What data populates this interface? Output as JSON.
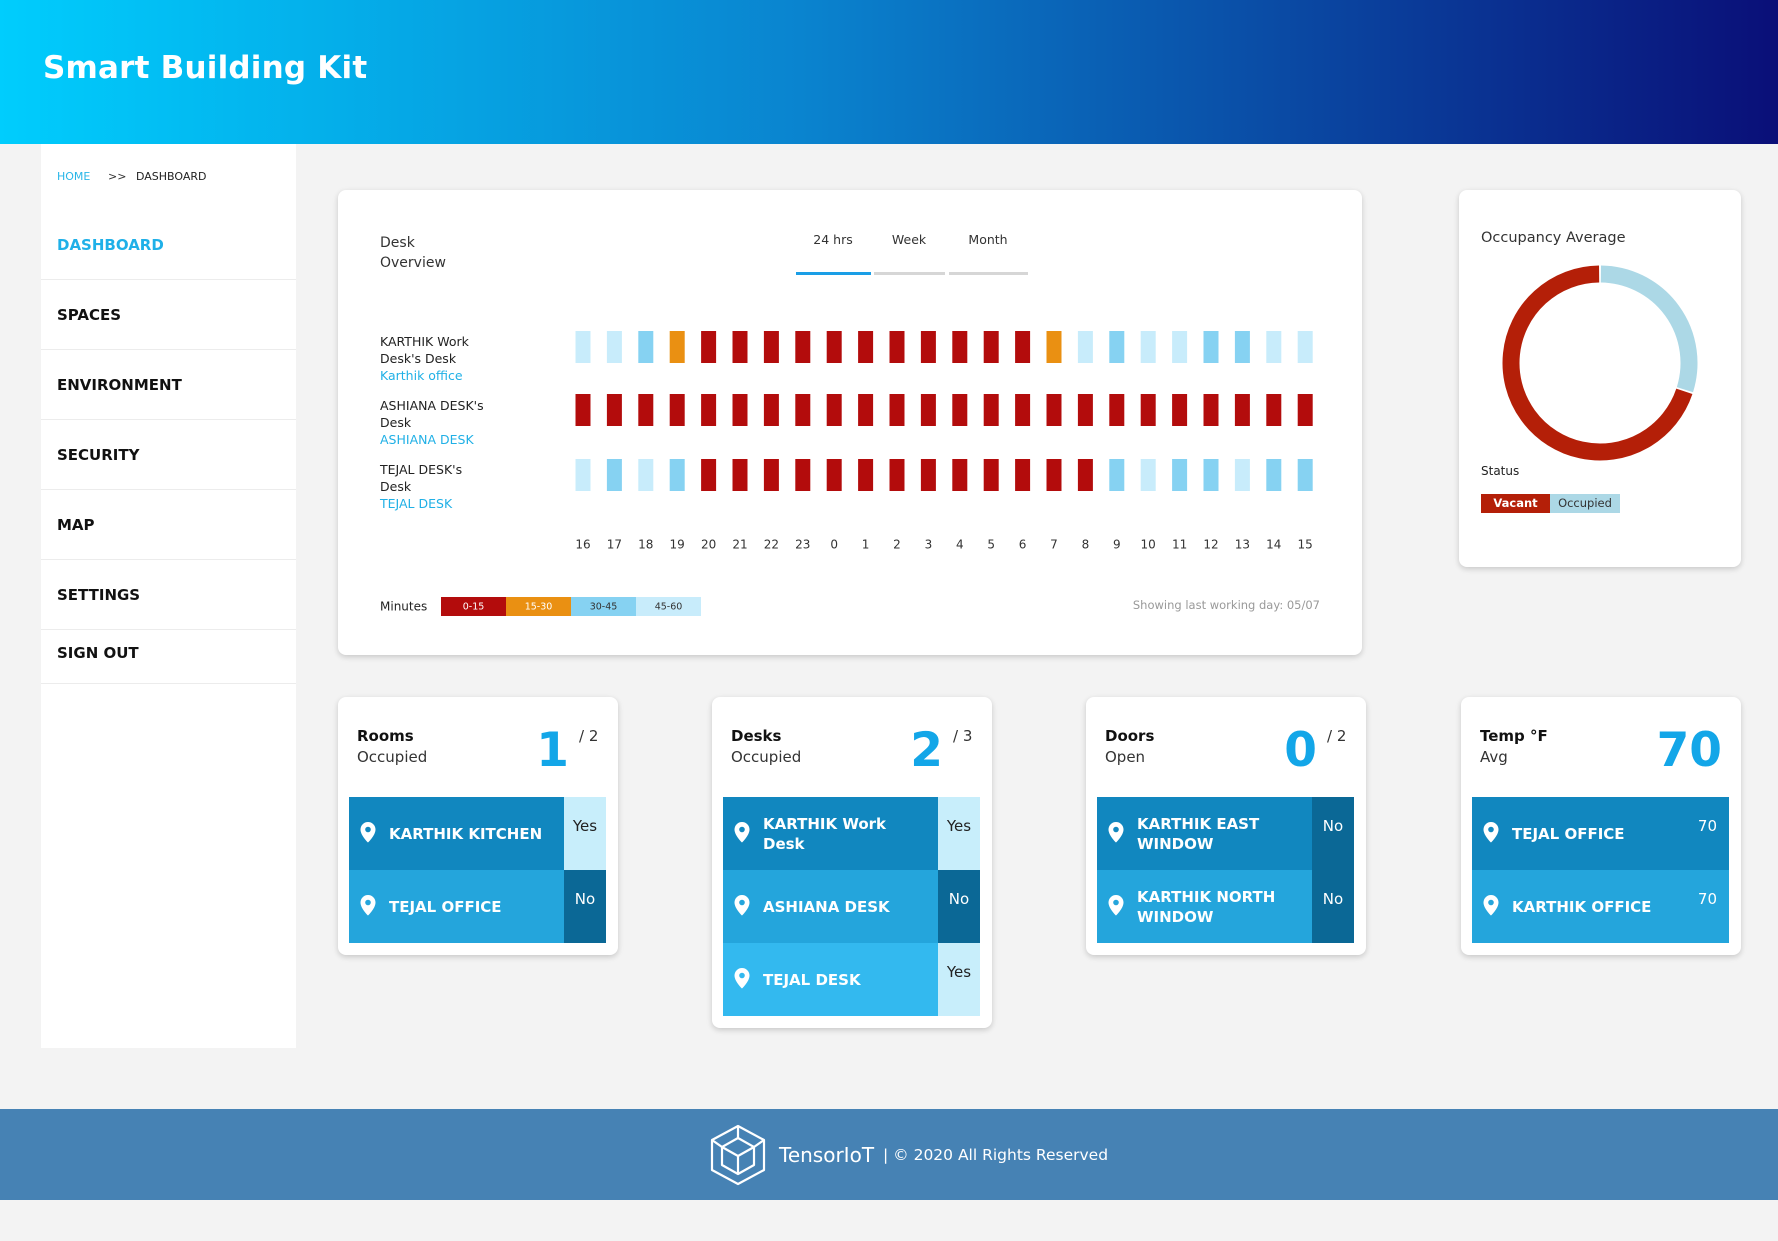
{
  "header": {
    "title": "Smart Building Kit"
  },
  "breadcrumb": {
    "home": "HOME",
    "separator": ">>",
    "current": "DASHBOARD"
  },
  "nav": {
    "items": [
      "DASHBOARD",
      "SPACES",
      "ENVIRONMENT",
      "SECURITY",
      "MAP",
      "SETTINGS",
      "SIGN OUT"
    ],
    "active": 0
  },
  "desk_overview": {
    "title": "Desk Overview",
    "tabs": [
      "24 hrs",
      "Week",
      "Month"
    ],
    "active_tab": 0,
    "rows": [
      {
        "name": "KARTHIK Work Desk's Desk",
        "location": "Karthik office",
        "cells": [
          3,
          3,
          2,
          1,
          0,
          0,
          0,
          0,
          0,
          0,
          0,
          0,
          0,
          0,
          0,
          1,
          3,
          2,
          3,
          3,
          2,
          2,
          3,
          3
        ]
      },
      {
        "name": "ASHIANA DESK's Desk",
        "location": "ASHIANA DESK",
        "cells": [
          0,
          0,
          0,
          0,
          0,
          0,
          0,
          0,
          0,
          0,
          0,
          0,
          0,
          0,
          0,
          0,
          0,
          0,
          0,
          0,
          0,
          0,
          0,
          0
        ]
      },
      {
        "name": "TEJAL DESK's Desk",
        "location": "TEJAL DESK",
        "cells": [
          3,
          2,
          3,
          2,
          0,
          0,
          0,
          0,
          0,
          0,
          0,
          0,
          0,
          0,
          0,
          0,
          0,
          2,
          3,
          2,
          2,
          3,
          2,
          2
        ]
      }
    ],
    "hours": [
      16,
      17,
      18,
      19,
      20,
      21,
      22,
      23,
      0,
      1,
      2,
      3,
      4,
      5,
      6,
      7,
      8,
      9,
      10,
      11,
      12,
      13,
      14,
      15
    ],
    "legend": {
      "title": "Minutes",
      "bins": [
        {
          "label": "0-15",
          "color": "#b30c0c"
        },
        {
          "label": "15-30",
          "color": "#ea9012"
        },
        {
          "label": "30-45",
          "color": "#86d2f2"
        },
        {
          "label": "45-60",
          "color": "#c8ecfb"
        }
      ]
    },
    "note": "Showing last working day: 05/07"
  },
  "occupancy": {
    "title": "Occupancy Average",
    "status_label": "Status",
    "segments": [
      {
        "name": "Vacant",
        "value": 70,
        "color": "#b41f08"
      },
      {
        "name": "Occupied",
        "value": 30,
        "color": "#acd8e6"
      }
    ]
  },
  "cards": [
    {
      "title": "Rooms",
      "subtitle": "Occupied",
      "value": 1,
      "total": "/ 2",
      "items": [
        {
          "label": "KARTHIK KITCHEN",
          "status": "Yes"
        },
        {
          "label": "TEJAL OFFICE",
          "status": "No"
        }
      ]
    },
    {
      "title": "Desks",
      "subtitle": "Occupied",
      "value": 2,
      "total": "/ 3",
      "items": [
        {
          "label": "KARTHIK Work Desk",
          "status": "Yes"
        },
        {
          "label": "ASHIANA DESK",
          "status": "No"
        },
        {
          "label": "TEJAL DESK",
          "status": "Yes"
        }
      ]
    },
    {
      "title": "Doors",
      "subtitle": "Open",
      "value": 0,
      "total": "/ 2",
      "items": [
        {
          "label": "KARTHIK EAST WINDOW",
          "status": "No"
        },
        {
          "label": "KARTHIK NORTH WINDOW",
          "status": "No"
        }
      ]
    },
    {
      "title": "Temp °F",
      "subtitle": "Avg",
      "value": 70,
      "items": [
        {
          "label": "TEJAL OFFICE",
          "status": 70
        },
        {
          "label": "KARTHIK OFFICE",
          "status": 70
        }
      ]
    }
  ],
  "footer": {
    "brand": "TensorIoT",
    "copyright": "| © 2020 All Rights Reserved"
  }
}
